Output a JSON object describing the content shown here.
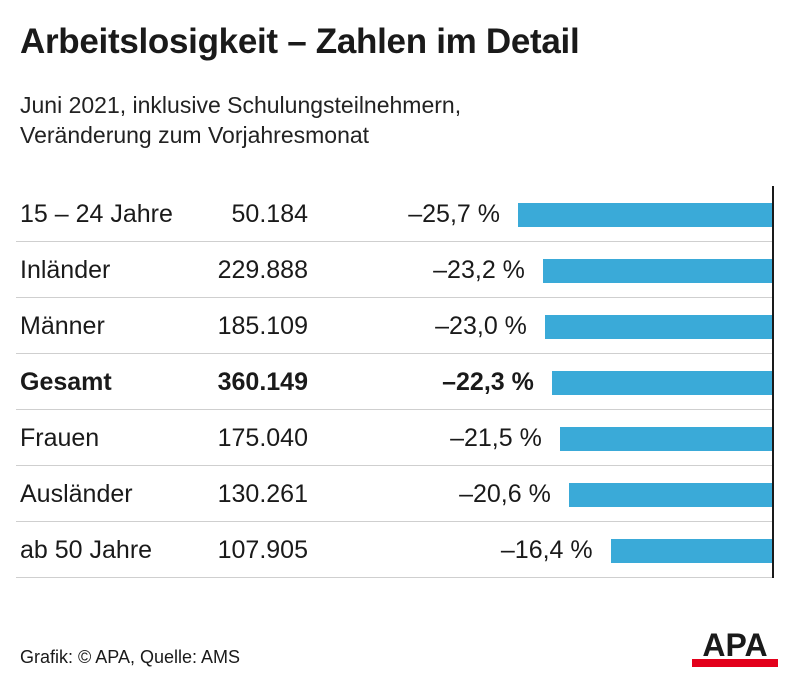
{
  "header": {
    "title": "Arbeitslosigkeit – Zahlen im Detail",
    "subtitle_line1": "Juni 2021, inklusive Schulungsteilnehmern,",
    "subtitle_line2": "Veränderung zum Vorjahresmonat"
  },
  "chart_data": {
    "type": "bar",
    "orientation": "horizontal",
    "categories": [
      "15 – 24 Jahre",
      "Inländer",
      "Männer",
      "Gesamt",
      "Frauen",
      "Ausländer",
      "ab 50 Jahre"
    ],
    "counts": [
      "50.184",
      "229.888",
      "185.109",
      "360.149",
      "175.040",
      "130.261",
      "107.905"
    ],
    "values": [
      -25.7,
      -23.2,
      -23.0,
      -22.3,
      -21.5,
      -20.6,
      -16.4
    ],
    "value_labels": [
      "–25,7 %",
      "–23,2 %",
      "–23,0 %",
      "–22,3 %",
      "–21,5 %",
      "–20,6 %",
      "–16,4 %"
    ],
    "highlight": "Gesamt",
    "bar_color": "#3aaad8",
    "xlim": [
      -25.7,
      0
    ],
    "grid": false
  },
  "footer": {
    "source": "Grafik: © APA, Quelle: AMS",
    "logo_text": "APA",
    "logo_color": "#e3001b"
  }
}
